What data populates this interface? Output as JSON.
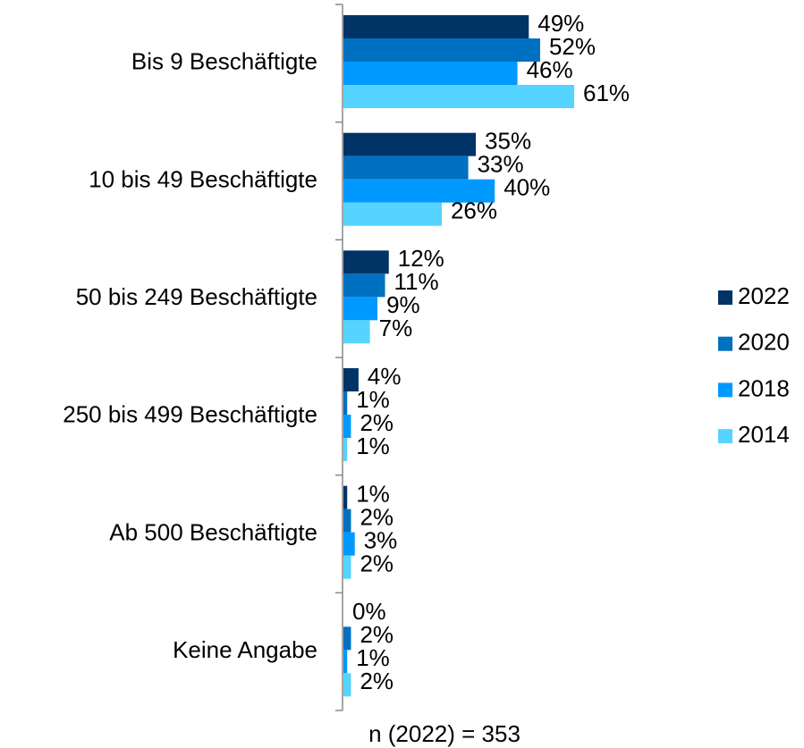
{
  "chart_data": {
    "type": "bar",
    "orientation": "horizontal",
    "categories": [
      "Bis 9 Beschäftigte",
      "10 bis 49 Beschäftigte",
      "50 bis 249 Beschäftigte",
      "250 bis 499 Beschäftigte",
      "Ab 500 Beschäftigte",
      "Keine Angabe"
    ],
    "series": [
      {
        "name": "2022",
        "color": "#003366",
        "values": [
          49,
          35,
          12,
          4,
          1,
          0
        ],
        "value_labels": [
          "49%",
          "35%",
          "12%",
          "4%",
          "1%",
          "0%"
        ]
      },
      {
        "name": "2020",
        "color": "#0070c0",
        "values": [
          52,
          33,
          11,
          1,
          2,
          2
        ],
        "value_labels": [
          "52%",
          "33%",
          "11%",
          "1%",
          "2%",
          "2%"
        ]
      },
      {
        "name": "2018",
        "color": "#0099ff",
        "values": [
          46,
          40,
          9,
          2,
          3,
          1
        ],
        "value_labels": [
          "46%",
          "40%",
          "9%",
          "2%",
          "3%",
          "1%"
        ]
      },
      {
        "name": "2014",
        "color": "#55d4ff",
        "values": [
          61,
          26,
          7,
          1,
          2,
          2
        ],
        "value_labels": [
          "61%",
          "26%",
          "7%",
          "1%",
          "2%",
          "2%"
        ]
      }
    ],
    "legend": "right",
    "footnote": "n (2022) = 353"
  }
}
